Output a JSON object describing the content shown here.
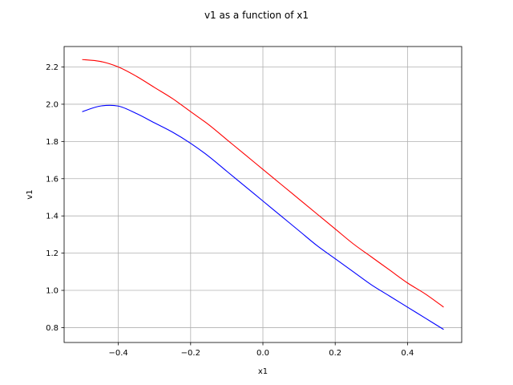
{
  "chart_data": {
    "type": "line",
    "title": "v1 as a function of x1",
    "xlabel": "x1",
    "ylabel": "v1",
    "xlim": [
      -0.55,
      0.55
    ],
    "ylim": [
      0.72,
      2.31
    ],
    "grid": true,
    "xticks": [
      -0.4,
      -0.2,
      0.0,
      0.2,
      0.4
    ],
    "xtick_labels": [
      "−0.4",
      "−0.2",
      "0.0",
      "0.2",
      "0.4"
    ],
    "yticks": [
      0.8,
      1.0,
      1.2,
      1.4,
      1.6,
      1.8,
      2.0,
      2.2
    ],
    "ytick_labels": [
      "0.8",
      "1.0",
      "1.2",
      "1.4",
      "1.6",
      "1.8",
      "2.0",
      "2.2"
    ],
    "x": [
      -0.5,
      -0.45,
      -0.4,
      -0.35,
      -0.3,
      -0.25,
      -0.2,
      -0.15,
      -0.1,
      -0.05,
      0.0,
      0.05,
      0.1,
      0.15,
      0.2,
      0.25,
      0.3,
      0.35,
      0.4,
      0.45,
      0.5
    ],
    "series": [
      {
        "color": "#ff0000",
        "values": [
          2.24,
          2.23,
          2.2,
          2.15,
          2.09,
          2.03,
          1.96,
          1.89,
          1.81,
          1.73,
          1.65,
          1.57,
          1.49,
          1.41,
          1.33,
          1.25,
          1.18,
          1.11,
          1.04,
          0.98,
          0.91
        ]
      },
      {
        "color": "#0000ff",
        "values": [
          1.96,
          1.99,
          1.99,
          1.95,
          1.9,
          1.85,
          1.79,
          1.72,
          1.64,
          1.56,
          1.48,
          1.4,
          1.32,
          1.24,
          1.17,
          1.1,
          1.03,
          0.97,
          0.91,
          0.85,
          0.79
        ]
      }
    ]
  }
}
